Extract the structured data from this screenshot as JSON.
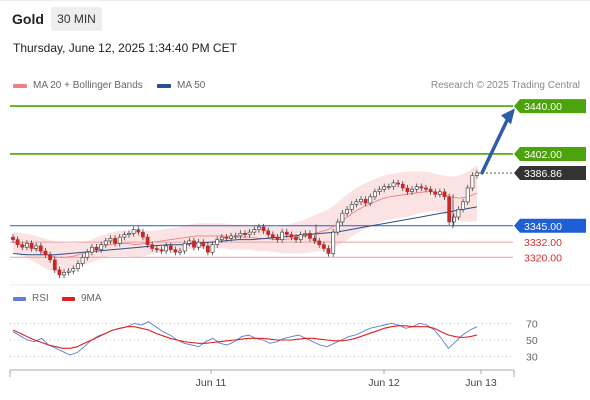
{
  "header": {
    "title": "Gold",
    "interval": "30 MIN",
    "timestamp": "Thursday, June 12, 2025 1:34:40 PM CET",
    "credit": "Research © 2025 Trading Central"
  },
  "legend": {
    "ma20": "MA 20 + Bollinger Bands",
    "ma50": "MA 50",
    "ma20_color": "#f08080",
    "ma50_color": "#2b4f8a"
  },
  "rsi_legend": {
    "rsi": "RSI",
    "ma9": "9MA",
    "rsi_color": "#5b7fd6",
    "ma9_color": "#e02020"
  },
  "chart_data": [
    {
      "type": "candlestick",
      "title": "",
      "ylim": [
        3298,
        3448
      ],
      "x_ticks": [
        "Jun 11",
        "Jun 12",
        "Jun 13"
      ],
      "price_levels": [
        {
          "value": 3440.0,
          "label": "3440.00",
          "style": "resistance",
          "color": "#4ca30d"
        },
        {
          "value": 3402.0,
          "label": "3402.00",
          "style": "resistance",
          "color": "#4ca30d"
        },
        {
          "value": 3386.86,
          "label": "3386.86",
          "style": "current",
          "color": "#333333"
        },
        {
          "value": 3345.0,
          "label": "3345.00",
          "style": "pivot",
          "color": "#1f5fd6"
        },
        {
          "value": 3332.0,
          "label": "3332.00",
          "style": "support",
          "color": "#d32f2f"
        },
        {
          "value": 3320.0,
          "label": "3320.00",
          "style": "support",
          "color": "#d32f2f"
        }
      ],
      "forecast_arrow": {
        "from": 3387,
        "to": 3435
      },
      "series": [
        {
          "name": "Price",
          "close": [
            3334,
            3330,
            3328,
            3331,
            3327,
            3329,
            3325,
            3322,
            3318,
            3310,
            3306,
            3308,
            3309,
            3311,
            3315,
            3320,
            3324,
            3328,
            3326,
            3330,
            3333,
            3335,
            3331,
            3336,
            3338,
            3339,
            3342,
            3340,
            3336,
            3330,
            3327,
            3326,
            3325,
            3329,
            3326,
            3324,
            3325,
            3331,
            3333,
            3328,
            3332,
            3329,
            3324,
            3330,
            3334,
            3336,
            3335,
            3337,
            3337,
            3339,
            3338,
            3340,
            3342,
            3344,
            3341,
            3338,
            3336,
            3334,
            3340,
            3338,
            3336,
            3334,
            3338,
            3339,
            3335,
            3333,
            3330,
            3327,
            3323,
            3340,
            3348,
            3355,
            3358,
            3362,
            3364,
            3366,
            3363,
            3368,
            3372,
            3374,
            3376,
            3376,
            3379,
            3378,
            3375,
            3372,
            3374,
            3376,
            3375,
            3374,
            3372,
            3370,
            3372,
            3368,
            3348,
            3352,
            3358,
            3364,
            3375,
            3385,
            3387
          ]
        },
        {
          "name": "MA 20",
          "values": [
            3332,
            3330,
            3328,
            3325,
            3322,
            3320,
            3320,
            3321,
            3323,
            3325,
            3328,
            3330,
            3331,
            3331,
            3330,
            3331,
            3332,
            3333,
            3334,
            3335,
            3336,
            3337,
            3337,
            3337,
            3337,
            3336,
            3336,
            3336,
            3335,
            3335,
            3334,
            3334,
            3335,
            3336,
            3338,
            3340,
            3342,
            3346,
            3351,
            3356,
            3360,
            3363,
            3366,
            3368,
            3369,
            3370,
            3371,
            3372,
            3372,
            3370,
            3368,
            3367,
            3368,
            3371
          ]
        },
        {
          "name": "MA 50",
          "values": [
            3323,
            3322,
            3322,
            3322,
            3323,
            3324,
            3325,
            3326,
            3327,
            3328,
            3329,
            3330,
            3330,
            3331,
            3332,
            3333,
            3334,
            3334,
            3335,
            3336,
            3337,
            3338,
            3339,
            3340,
            3342,
            3344,
            3346,
            3348,
            3350,
            3352,
            3354,
            3356,
            3358,
            3360
          ]
        }
      ]
    },
    {
      "type": "line",
      "title": "",
      "ylim": [
        20,
        80
      ],
      "y_ticks": [
        70,
        50,
        30
      ],
      "series": [
        {
          "name": "RSI",
          "values": [
            60,
            55,
            50,
            48,
            52,
            44,
            40,
            36,
            32,
            35,
            42,
            50,
            55,
            58,
            62,
            64,
            66,
            70,
            68,
            72,
            66,
            60,
            56,
            50,
            46,
            44,
            42,
            48,
            52,
            46,
            44,
            48,
            54,
            56,
            52,
            50,
            46,
            48,
            52,
            54,
            56,
            52,
            48,
            44,
            42,
            46,
            50,
            54,
            56,
            60,
            64,
            66,
            68,
            70,
            68,
            64,
            66,
            70,
            68,
            62,
            52,
            40,
            48,
            56,
            62,
            66
          ]
        },
        {
          "name": "9MA",
          "values": [
            62,
            58,
            54,
            50,
            47,
            44,
            42,
            40,
            40,
            42,
            46,
            50,
            54,
            58,
            62,
            64,
            66,
            66,
            64,
            62,
            58,
            55,
            52,
            50,
            48,
            47,
            46,
            46,
            47,
            48,
            49,
            50,
            51,
            52,
            52,
            52,
            51,
            50,
            50,
            50,
            51,
            52,
            52,
            51,
            50,
            49,
            49,
            50,
            52,
            55,
            58,
            61,
            64,
            66,
            67,
            67,
            66,
            66,
            66,
            64,
            60,
            56,
            54,
            53,
            54,
            56
          ]
        }
      ]
    }
  ]
}
